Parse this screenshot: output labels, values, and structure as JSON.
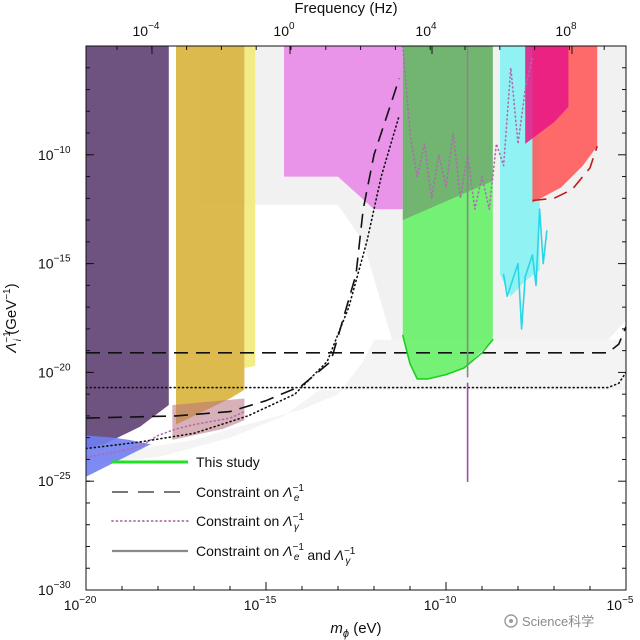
{
  "chart_data": {
    "type": "area",
    "title": "",
    "top_axis_title": "Frequency (Hz)",
    "top_ticks": [
      {
        "label": "10",
        "exp": "−4",
        "log_hz": -4
      },
      {
        "label": "10",
        "exp": "0",
        "log_hz": 0
      },
      {
        "label": "10",
        "exp": "4",
        "log_hz": 4
      },
      {
        "label": "10",
        "exp": "8",
        "log_hz": 8
      }
    ],
    "xlabel_parts": [
      "m",
      "ϕ",
      " (eV)"
    ],
    "ylabel_parts": [
      "Λ",
      "−1",
      "i",
      " (GeV",
      "−1",
      ")"
    ],
    "x_log_range": [
      -20,
      -5
    ],
    "y_log_range": [
      -30,
      -5
    ],
    "x_ticks": [
      {
        "label": "10",
        "exp": "−20",
        "v": -20
      },
      {
        "label": "10",
        "exp": "−15",
        "v": -15
      },
      {
        "label": "10",
        "exp": "−10",
        "v": -10
      },
      {
        "label": "10",
        "exp": "−5",
        "v": -5
      }
    ],
    "y_ticks": [
      {
        "label": "10",
        "exp": "−10",
        "v": -10
      },
      {
        "label": "10",
        "exp": "−15",
        "v": -15
      },
      {
        "label": "10",
        "exp": "−20",
        "v": -20
      },
      {
        "label": "10",
        "exp": "−25",
        "v": -25
      },
      {
        "label": "10",
        "exp": "−30",
        "v": -30
      }
    ],
    "legend": [
      {
        "key": "this_study",
        "text": "This study",
        "style": "solid-green",
        "parts": []
      },
      {
        "key": "lambda_e",
        "text": "Constraint on ",
        "style": "dashed",
        "parts": [
          "Λ",
          "e",
          "−1"
        ]
      },
      {
        "key": "lambda_gamma",
        "text": "Constraint on ",
        "style": "dotted",
        "parts": [
          "Λ",
          "γ",
          "−1"
        ]
      },
      {
        "key": "both",
        "text": "Constraint on ",
        "style": "solid-gray",
        "parts": [
          "Λ",
          "e",
          "−1",
          " and ",
          "Λ",
          "γ",
          "−1"
        ]
      }
    ],
    "regions": [
      {
        "name": "light-grey-excluded",
        "color": "#eeeeee",
        "opacity": 0.85,
        "points": [
          [
            -16.8,
            -4.9
          ],
          [
            -5,
            -4.9
          ],
          [
            -5,
            -17.6
          ],
          [
            -5.5,
            -18.5
          ],
          [
            -7,
            -18.6
          ],
          [
            -11,
            -18.6
          ],
          [
            -11.5,
            -18.5
          ],
          [
            -12.3,
            -14
          ],
          [
            -13,
            -12.3
          ],
          [
            -16.8,
            -12.3
          ]
        ]
      },
      {
        "name": "faint-grey-lower",
        "color": "#f4f4f4",
        "opacity": 1,
        "points": [
          [
            -20,
            -23.8
          ],
          [
            -18.5,
            -23.5
          ],
          [
            -17,
            -23.1
          ],
          [
            -16,
            -22.6
          ],
          [
            -14,
            -21.7
          ],
          [
            -13,
            -21
          ],
          [
            -12.3,
            -19.5
          ],
          [
            -12,
            -18.5
          ],
          [
            -5,
            -18.5
          ],
          [
            -5,
            -20.8
          ],
          [
            -13.5,
            -20.8
          ],
          [
            -14.5,
            -22
          ],
          [
            -16,
            -23
          ],
          [
            -18,
            -23.9
          ],
          [
            -20,
            -24.2
          ]
        ]
      },
      {
        "name": "violet-low-mass",
        "color": "#5a3b6f",
        "opacity": 0.88,
        "points": [
          [
            -20,
            -5
          ],
          [
            -17.7,
            -5
          ],
          [
            -17.7,
            -21.5
          ],
          [
            -18.5,
            -22.5
          ],
          [
            -19.5,
            -23.3
          ],
          [
            -20,
            -23.5
          ]
        ]
      },
      {
        "name": "blue-edge",
        "color": "#6f7ef2",
        "opacity": 0.9,
        "points": [
          [
            -20,
            -22.9
          ],
          [
            -19.2,
            -23.0
          ],
          [
            -18.8,
            -23.1
          ],
          [
            -18.2,
            -23.3
          ],
          [
            -20,
            -24.8
          ]
        ]
      },
      {
        "name": "gold-band",
        "color": "#d8b23a",
        "opacity": 0.9,
        "points": [
          [
            -17.5,
            -5
          ],
          [
            -15.6,
            -5
          ],
          [
            -15.6,
            -20.8
          ],
          [
            -16,
            -21.2
          ],
          [
            -17,
            -22
          ],
          [
            -17.5,
            -22.4
          ]
        ]
      },
      {
        "name": "pale-yellow-band",
        "color": "#f3ea7a",
        "opacity": 0.9,
        "points": [
          [
            -15.6,
            -5
          ],
          [
            -15.3,
            -5
          ],
          [
            -15.3,
            -19.7
          ],
          [
            -15.6,
            -19.8
          ]
        ]
      },
      {
        "name": "rose-region",
        "color": "#b8707d",
        "opacity": 0.55,
        "points": [
          [
            -17.6,
            -21.5
          ],
          [
            -15.6,
            -21.2
          ],
          [
            -15.6,
            -22.2
          ],
          [
            -16.2,
            -22.6
          ],
          [
            -17.6,
            -23.1
          ]
        ]
      },
      {
        "name": "magenta-block",
        "color": "#e88ee8",
        "opacity": 0.95,
        "points": [
          [
            -14.5,
            -5
          ],
          [
            -11.2,
            -5
          ],
          [
            -11.2,
            -12.5
          ],
          [
            -12,
            -12.5
          ],
          [
            -13,
            -11.0
          ],
          [
            -14.5,
            -11.0
          ]
        ]
      },
      {
        "name": "green-this-study",
        "color": "#5ef05e",
        "opacity": 0.85,
        "points": [
          [
            -11.2,
            -5
          ],
          [
            -8.7,
            -5
          ],
          [
            -8.7,
            -18.5
          ],
          [
            -9.0,
            -19
          ],
          [
            -9.5,
            -19.8
          ],
          [
            -10.0,
            -20.1
          ],
          [
            -10.5,
            -20.3
          ],
          [
            -10.8,
            -20.3
          ],
          [
            -11.0,
            -19.6
          ],
          [
            -11.2,
            -18.3
          ]
        ]
      },
      {
        "name": "green-dark-overlap",
        "color": "#6f8d6f",
        "opacity": 0.6,
        "points": [
          [
            -11.2,
            -5
          ],
          [
            -8.7,
            -5
          ],
          [
            -8.7,
            -11.2
          ],
          [
            -11.2,
            -13
          ]
        ]
      },
      {
        "name": "cyan-region",
        "color": "#7ff2f2",
        "opacity": 0.85,
        "points": [
          [
            -8.5,
            -5
          ],
          [
            -7.4,
            -5
          ],
          [
            -7.4,
            -15.3
          ],
          [
            -7.8,
            -15.8
          ],
          [
            -8.2,
            -16.5
          ],
          [
            -8.5,
            -15.5
          ]
        ]
      },
      {
        "name": "red-region",
        "color": "#ff5b5b",
        "opacity": 0.9,
        "points": [
          [
            -7.6,
            -5
          ],
          [
            -5.8,
            -5
          ],
          [
            -5.8,
            -9.6
          ],
          [
            -6.2,
            -10.5
          ],
          [
            -6.8,
            -11.5
          ],
          [
            -7.6,
            -12.2
          ]
        ]
      },
      {
        "name": "hot-pink-corner",
        "color": "#e81586",
        "opacity": 0.85,
        "points": [
          [
            -7.8,
            -5
          ],
          [
            -6.6,
            -5
          ],
          [
            -6.6,
            -7.8
          ],
          [
            -7.0,
            -8.5
          ],
          [
            -7.8,
            -9.5
          ]
        ]
      }
    ],
    "curves": [
      {
        "name": "dashed-lambda-e",
        "style": "dashed",
        "color": "#111111",
        "points": [
          [
            -20,
            -22.1
          ],
          [
            -17.5,
            -22
          ],
          [
            -16,
            -21.8
          ],
          [
            -15,
            -21.3
          ],
          [
            -14,
            -20.6
          ],
          [
            -13.2,
            -19.5
          ],
          [
            -12.5,
            -15.5
          ],
          [
            -12.3,
            -12.5
          ],
          [
            -12.0,
            -10
          ],
          [
            -11.6,
            -8
          ],
          [
            -11.3,
            -6.5
          ]
        ]
      },
      {
        "name": "dashed-lambda-e-flat",
        "style": "dashed",
        "color": "#111111",
        "points": [
          [
            -20,
            -19.1
          ],
          [
            -5.5,
            -19.1
          ],
          [
            -5.2,
            -18.7
          ],
          [
            -5,
            -17.9
          ]
        ]
      },
      {
        "name": "dotted-lambda-gamma",
        "style": "dotted",
        "color": "#111111",
        "points": [
          [
            -20,
            -23.5
          ],
          [
            -18.5,
            -23.2
          ],
          [
            -17,
            -22.8
          ],
          [
            -15.5,
            -22
          ],
          [
            -14.2,
            -21
          ],
          [
            -13.3,
            -19.5
          ],
          [
            -12.7,
            -17
          ],
          [
            -12.2,
            -14
          ],
          [
            -11.8,
            -11
          ],
          [
            -11.3,
            -8.2
          ]
        ]
      },
      {
        "name": "dotted-lambda-gamma-flat",
        "style": "dotted",
        "color": "#111111",
        "points": [
          [
            -20,
            -20.7
          ],
          [
            -5.5,
            -20.7
          ],
          [
            -5.2,
            -20.5
          ],
          [
            -5,
            -20.0
          ]
        ]
      },
      {
        "name": "dotted-pink-upper",
        "style": "dotted",
        "color": "#b06bb0",
        "points": [
          [
            -11.2,
            -5
          ],
          [
            -11.0,
            -9
          ],
          [
            -10.8,
            -11
          ],
          [
            -10.6,
            -9.5
          ],
          [
            -10.4,
            -12
          ],
          [
            -10.2,
            -10
          ],
          [
            -10.0,
            -11.5
          ],
          [
            -9.8,
            -9
          ],
          [
            -9.6,
            -12
          ],
          [
            -9.4,
            -10
          ],
          [
            -9.2,
            -12.5
          ],
          [
            -9.0,
            -11
          ],
          [
            -8.8,
            -12.5
          ],
          [
            -8.6,
            -9.5
          ],
          [
            -8.4,
            -10.5
          ],
          [
            -8.2,
            -6
          ],
          [
            -8.0,
            -9.5
          ],
          [
            -7.8,
            -7
          ],
          [
            -7.6,
            -5.5
          ]
        ]
      },
      {
        "name": "dotted-pink-low",
        "style": "dotted",
        "color": "#b06bb0",
        "points": [
          [
            -20,
            -23.9
          ],
          [
            -19,
            -23.6
          ],
          [
            -18.5,
            -23.4
          ],
          [
            -18,
            -22.9
          ],
          [
            -17.5,
            -22.6
          ],
          [
            -17,
            -22.4
          ],
          [
            -16,
            -22.1
          ],
          [
            -15.6,
            -21.8
          ]
        ]
      },
      {
        "name": "green-boundary",
        "style": "solid",
        "color": "#1ed01e",
        "points": [
          [
            -11.2,
            -18.3
          ],
          [
            -11.0,
            -19.6
          ],
          [
            -10.8,
            -20.3
          ],
          [
            -10.5,
            -20.3
          ],
          [
            -10.0,
            -20.1
          ],
          [
            -9.5,
            -19.8
          ],
          [
            -9.0,
            -19.1
          ],
          [
            -8.7,
            -18.5
          ]
        ]
      },
      {
        "name": "purple-spike",
        "style": "solid",
        "color": "#a34aa3",
        "points": [
          [
            -9.4,
            -20.5
          ],
          [
            -9.4,
            -25
          ]
        ]
      },
      {
        "name": "grey-solid-line",
        "style": "solid",
        "color": "#888888",
        "points": [
          [
            -9.4,
            -5
          ],
          [
            -9.4,
            -20.2
          ]
        ]
      },
      {
        "name": "cyan-spikes",
        "style": "solid",
        "color": "#29d6e8",
        "points": [
          [
            -8.4,
            -15.5
          ],
          [
            -8.3,
            -16.5
          ],
          [
            -8.2,
            -16.0
          ],
          [
            -8.0,
            -15.0
          ],
          [
            -7.9,
            -18.0
          ],
          [
            -7.8,
            -15.6
          ],
          [
            -7.6,
            -14.6
          ],
          [
            -7.5,
            -16.0
          ],
          [
            -7.4,
            -12.5
          ],
          [
            -7.3,
            -15.0
          ],
          [
            -7.2,
            -13.5
          ]
        ]
      },
      {
        "name": "red-boundary",
        "style": "dashed",
        "color": "#c01a1a",
        "points": [
          [
            -7.6,
            -12.1
          ],
          [
            -7.0,
            -12.0
          ],
          [
            -6.5,
            -11.6
          ],
          [
            -6.0,
            -10.6
          ],
          [
            -5.8,
            -9.6
          ]
        ]
      }
    ]
  },
  "watermark": "Science科学"
}
